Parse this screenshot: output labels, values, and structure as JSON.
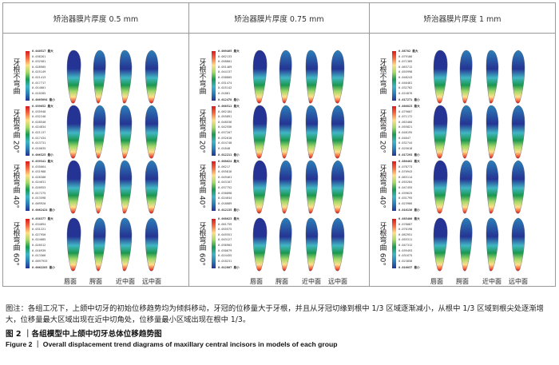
{
  "columns": [
    {
      "title": "矫治器膜片厚度 0.5 mm"
    },
    {
      "title": "矫治器膜片厚度 0.75 mm"
    },
    {
      "title": "矫治器膜片厚度 1 mm"
    }
  ],
  "rows": [
    {
      "label": "牙根不弯曲"
    },
    {
      "label": "牙根弯曲 20°"
    },
    {
      "label": "牙根弯曲 40°"
    },
    {
      "label": "牙根弯曲 60°"
    }
  ],
  "legends": [
    [
      {
        "max": "0.040517 最大",
        "vals": [
          "0.036261",
          "0.032581",
          "0.028905",
          "0.025149",
          "0.021413",
          "0.017717",
          "0.014001",
          "0.010285"
        ],
        "min": "0.0065694 最小"
      },
      {
        "max": "0.039652 最大",
        "vals": [
          "0.035948",
          "0.032246",
          "0.028540",
          "0.024834",
          "0.021137",
          "0.017434",
          "0.013731",
          "0.010035"
        ],
        "min": "0.006325 最小"
      },
      {
        "max": "0.039341 最大",
        "vals": [
          "0.035664",
          "0.031988",
          "0.028308",
          "0.024631",
          "0.020953",
          "0.017275",
          "0.013598",
          "0.009920"
        ],
        "min": "0.0062424 最小"
      },
      {
        "max": "0.038377 最大",
        "vals": [
          "0.034894",
          "0.031221",
          "0.027950",
          "0.024085",
          "0.020512",
          "0.016939",
          "0.013366",
          "0.0097933"
        ],
        "min": "0.0062203 最小"
      }
    ],
    [
      {
        "max": "0.069465 最大",
        "vals": [
          "0.062133",
          "0.058801",
          "0.051469",
          "0.044137",
          "0.038805",
          "0.031474",
          "0.025142",
          "0.01881"
        ],
        "min": "0.012478 最小"
      },
      {
        "max": "0.068511 最大",
        "vals": [
          "0.062184",
          "0.055891",
          "0.048536",
          "0.042556",
          "0.037207",
          "0.032010",
          "0.024748",
          "0.01848"
        ],
        "min": "0.012211 最小"
      },
      {
        "max": "0.068624 最大",
        "vals": [
          "0.06217",
          "0.055816",
          "0.049461",
          "0.043107",
          "0.037752",
          "0.030098",
          "0.024644",
          "0.018089"
        ],
        "min": "0.012135 最小"
      },
      {
        "max": "0.068023 最大",
        "vals": [
          "0.061759",
          "0.055575",
          "0.049351",
          "0.043127",
          "0.036903",
          "0.030679",
          "0.024455",
          "0.018231"
        ],
        "min": "0.012007 最小"
      }
    ],
    [
      {
        "max": "0.08702 最大",
        "vals": [
          "0.079186",
          "0.071389",
          "0.063712",
          "0.055998",
          "0.048243",
          "0.040481",
          "0.032762",
          "0.024876"
        ],
        "min": "0.017271 最小"
      },
      {
        "max": "0.086823 最大",
        "vals": [
          "0.079007",
          "0.071172",
          "0.063466",
          "0.055821",
          "0.048195",
          "0.04047",
          "0.032744",
          "0.025018"
        ],
        "min": "0.017293 最小"
      },
      {
        "max": "0.086462 最大",
        "vals": [
          "0.078773",
          "0.070943",
          "0.063114",
          "0.055284",
          "0.047455",
          "0.039625",
          "0.031795",
          "0.023966"
        ],
        "min": "0.016136 最小"
      },
      {
        "max": "0.085406 最大",
        "vals": [
          "0.078087",
          "0.070198",
          "0.062951",
          "0.055311",
          "0.047312",
          "0.039493",
          "0.031675",
          "0.023858"
        ],
        "min": "0.016037 最小"
      }
    ]
  ],
  "view_labels": [
    "唇面",
    "腭面",
    "近中面",
    "远中面"
  ],
  "caption": {
    "note": "图注：各组工况下，上颌中切牙的初始位移趋势均为倾斜移动，牙冠的位移量大于牙根，并且从牙冠切缘到根中 1/3 区域逐渐减小，从根中 1/3 区域到根尖处逐渐增大，位移量最大区域出现在近中切角处，位移量最小区域出现在根中 1/3。",
    "title_cn": "图 2 ｜各组模型中上颌中切牙总体位移趋势图",
    "title_en": "Figure 2 ｜ Overall displacement trend diagrams of maxillary central incisors in models of each group"
  },
  "colors": {
    "max": "#d7191c",
    "high": "#fee08b",
    "mid": "#1a9850",
    "low": "#41b6c4",
    "min": "#253494"
  }
}
